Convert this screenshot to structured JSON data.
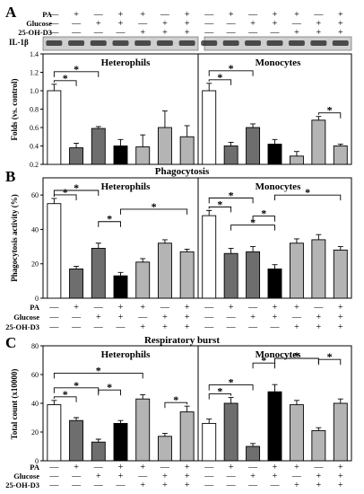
{
  "figure": {
    "blot_label": "IL-1β",
    "treatment_labels": [
      "PA",
      "Glucose",
      "25-OH-D3"
    ],
    "sign_plus": "+",
    "sign_minus": "—",
    "bar_colors": [
      "#ffffff",
      "#6e6e6e",
      "#6e6e6e",
      "#000000",
      "#b4b4b4",
      "#b4b4b4",
      "#b4b4b4"
    ],
    "significance_mark": "*"
  },
  "treatments": {
    "PA": [
      0,
      1,
      0,
      1,
      1,
      0,
      1
    ],
    "Glucose": [
      0,
      0,
      1,
      1,
      0,
      1,
      1
    ],
    "25-OH-D3": [
      0,
      0,
      0,
      0,
      1,
      1,
      1
    ]
  },
  "chart_data": [
    {
      "type": "bar",
      "panel_label": "A",
      "title": "",
      "ylabel": "Folds (vs. control)",
      "ylim": [
        0.2,
        1.4
      ],
      "yticks": [
        0.2,
        0.4,
        0.6,
        0.8,
        1.0,
        1.2,
        1.4
      ],
      "ytick_labels": [
        "0.2",
        "0.4",
        "0.6",
        "0.8",
        "1.0",
        "1.2",
        "1.4"
      ],
      "subplots": [
        {
          "title": "Heterophils",
          "values": [
            1.0,
            0.38,
            0.59,
            0.4,
            0.39,
            0.6,
            0.5
          ],
          "errors": [
            0.07,
            0.05,
            0.02,
            0.07,
            0.13,
            0.18,
            0.12
          ],
          "brackets": [
            {
              "from": 0,
              "to": 1
            },
            {
              "from": 0,
              "to": 2
            }
          ]
        },
        {
          "title": "Monocytes",
          "values": [
            1.0,
            0.4,
            0.6,
            0.42,
            0.29,
            0.68,
            0.4
          ],
          "errors": [
            0.08,
            0.04,
            0.04,
            0.05,
            0.05,
            0.04,
            0.02
          ],
          "brackets": [
            {
              "from": 0,
              "to": 1
            },
            {
              "from": 0,
              "to": 2
            },
            {
              "from": 5,
              "to": 6
            }
          ]
        }
      ]
    },
    {
      "type": "bar",
      "panel_label": "B",
      "title": "Phagocytosis",
      "ylabel": "Phagocytosis activity (%)",
      "ylim": [
        0,
        70
      ],
      "yticks": [
        0,
        20,
        40,
        60
      ],
      "ytick_labels": [
        "0",
        "20",
        "40",
        "60"
      ],
      "subplots": [
        {
          "title": "Heterophils",
          "values": [
            55,
            17,
            29,
            13,
            21,
            32,
            27
          ],
          "errors": [
            3,
            1.5,
            3,
            2,
            2,
            2,
            1.5
          ],
          "brackets": [
            {
              "from": 0,
              "to": 1
            },
            {
              "from": 0,
              "to": 2
            },
            {
              "from": 2,
              "to": 3
            },
            {
              "from": 3,
              "to": 6
            }
          ]
        },
        {
          "title": "Monocytes",
          "values": [
            48,
            26,
            27,
            17,
            32,
            34,
            28
          ],
          "errors": [
            3,
            3,
            3,
            2.5,
            2.5,
            3,
            2
          ],
          "brackets": [
            {
              "from": 0,
              "to": 1
            },
            {
              "from": 0,
              "to": 2
            },
            {
              "from": 1,
              "to": 3
            },
            {
              "from": 2,
              "to": 3
            },
            {
              "from": 3,
              "to": 6
            }
          ]
        }
      ]
    },
    {
      "type": "bar",
      "panel_label": "C",
      "title": "Respiratory burst",
      "ylabel": "Total count (x10000)",
      "ylim": [
        0,
        80
      ],
      "yticks": [
        0,
        20,
        40,
        60,
        80
      ],
      "ytick_labels": [
        "0",
        "20",
        "40",
        "60",
        "80"
      ],
      "subplots": [
        {
          "title": "Heterophils",
          "values": [
            39,
            28,
            13,
            26,
            43,
            17,
            34
          ],
          "errors": [
            3,
            2,
            2,
            2,
            3,
            2,
            4
          ],
          "brackets": [
            {
              "from": 0,
              "to": 1
            },
            {
              "from": 0,
              "to": 2
            },
            {
              "from": 0,
              "to": 4
            },
            {
              "from": 2,
              "to": 3
            },
            {
              "from": 5,
              "to": 6
            }
          ]
        },
        {
          "title": "Monocytes",
          "values": [
            26,
            40,
            10,
            48,
            39,
            21,
            40
          ],
          "errors": [
            3,
            4,
            2,
            5,
            3,
            2,
            3
          ],
          "brackets": [
            {
              "from": 0,
              "to": 1
            },
            {
              "from": 0,
              "to": 2
            },
            {
              "from": 2,
              "to": 3
            },
            {
              "from": 3,
              "to": 5
            },
            {
              "from": 5,
              "to": 6
            }
          ]
        }
      ]
    }
  ]
}
